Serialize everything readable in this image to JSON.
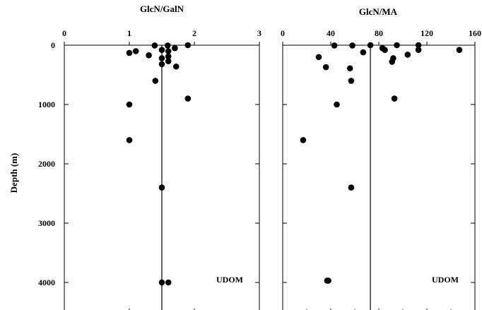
{
  "chart_data": [
    {
      "type": "scatter",
      "title": "GlcN/GalN",
      "ylabel": "Depth (m)",
      "xlim": [
        0,
        3
      ],
      "ylim": [
        0,
        4400
      ],
      "y_inverted": true,
      "x_axis_position": "top",
      "x_ticks": [
        0,
        1,
        2,
        3
      ],
      "x_tick_labels": [
        "0",
        "1",
        "2",
        "3"
      ],
      "y_ticks": [
        0,
        1000,
        2000,
        3000,
        4000
      ],
      "y_tick_labels": [
        "0",
        "1000",
        "2000",
        "3000",
        "4000"
      ],
      "reference_line_x": 1.5,
      "annotation": "UDOM",
      "annotation_position": "bottom-right",
      "grid": false,
      "points": [
        {
          "x": 1.39,
          "y": 5
        },
        {
          "x": 1.59,
          "y": 5
        },
        {
          "x": 1.9,
          "y": 0
        },
        {
          "x": 1.7,
          "y": 50
        },
        {
          "x": 1.5,
          "y": 80
        },
        {
          "x": 1.6,
          "y": 100
        },
        {
          "x": 1.1,
          "y": 100
        },
        {
          "x": 1.0,
          "y": 130
        },
        {
          "x": 1.3,
          "y": 170
        },
        {
          "x": 1.6,
          "y": 190
        },
        {
          "x": 1.5,
          "y": 220
        },
        {
          "x": 1.6,
          "y": 270
        },
        {
          "x": 1.5,
          "y": 320
        },
        {
          "x": 1.72,
          "y": 360
        },
        {
          "x": 1.4,
          "y": 600
        },
        {
          "x": 1.9,
          "y": 900
        },
        {
          "x": 1.0,
          "y": 1000
        },
        {
          "x": 1.0,
          "y": 1600
        },
        {
          "x": 1.5,
          "y": 2400
        },
        {
          "x": 1.5,
          "y": 4000
        },
        {
          "x": 1.6,
          "y": 4000
        }
      ]
    },
    {
      "type": "scatter",
      "title": "GlcN/MA",
      "xlim": [
        0,
        160
      ],
      "ylim": [
        0,
        4400
      ],
      "y_inverted": true,
      "x_axis_position": "top",
      "x_ticks": [
        0,
        40,
        80,
        120,
        160
      ],
      "x_tick_labels": [
        "0",
        "40",
        "80",
        "120",
        "160"
      ],
      "reference_line_x": 73,
      "annotation": "UDOM",
      "annotation_position": "bottom-right",
      "grid": false,
      "points": [
        {
          "x": 43,
          "y": 5
        },
        {
          "x": 58,
          "y": 5
        },
        {
          "x": 73,
          "y": 0
        },
        {
          "x": 95,
          "y": 0
        },
        {
          "x": 113,
          "y": 0
        },
        {
          "x": 83,
          "y": 50
        },
        {
          "x": 85,
          "y": 80
        },
        {
          "x": 113,
          "y": 80
        },
        {
          "x": 147,
          "y": 80
        },
        {
          "x": 67,
          "y": 120
        },
        {
          "x": 104,
          "y": 160
        },
        {
          "x": 30,
          "y": 200
        },
        {
          "x": 92,
          "y": 220
        },
        {
          "x": 91,
          "y": 280
        },
        {
          "x": 36,
          "y": 370
        },
        {
          "x": 56,
          "y": 390
        },
        {
          "x": 57,
          "y": 600
        },
        {
          "x": 93,
          "y": 900
        },
        {
          "x": 45,
          "y": 1000
        },
        {
          "x": 17,
          "y": 1600
        },
        {
          "x": 57,
          "y": 2400
        },
        {
          "x": 37,
          "y": 3970
        },
        {
          "x": 38,
          "y": 3970
        }
      ]
    }
  ]
}
